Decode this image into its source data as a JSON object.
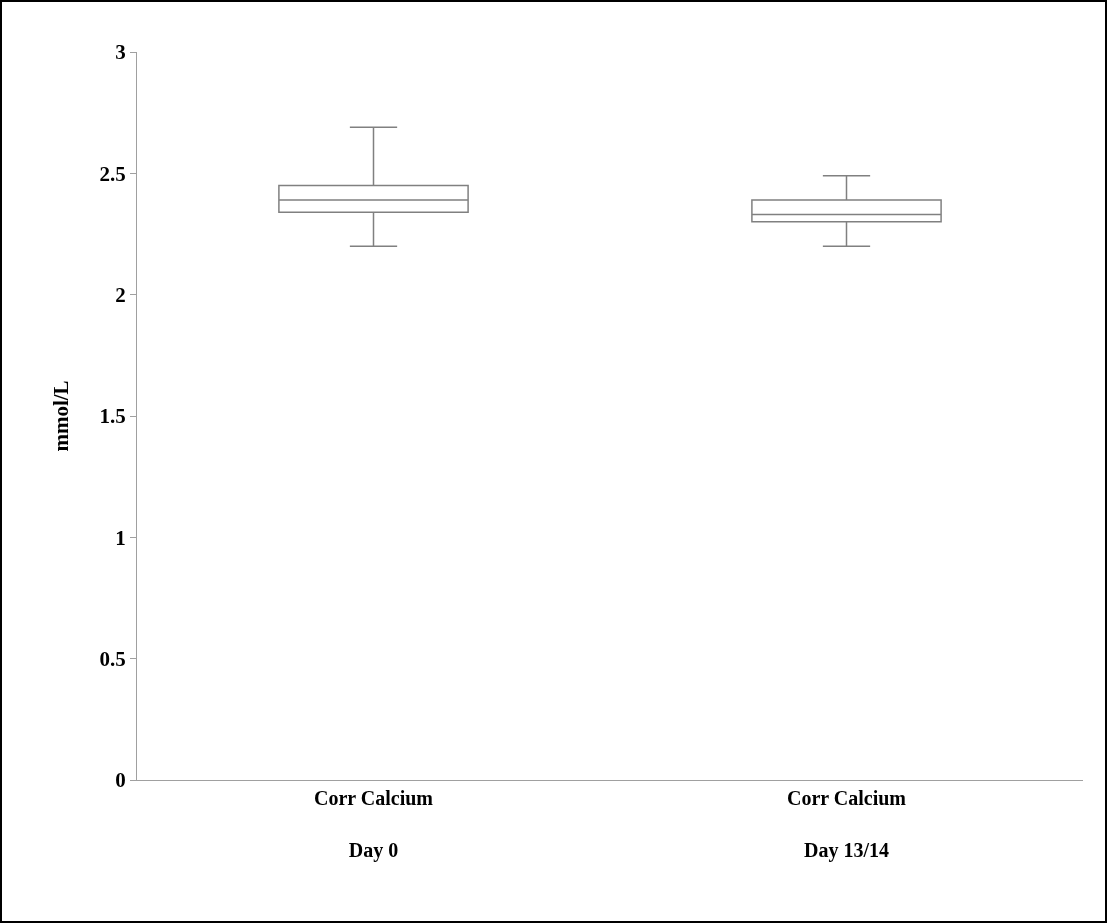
{
  "chart_data": {
    "type": "box",
    "ylabel": "mmol/L",
    "categories": [
      "Corr Calcium\nDay 0",
      "Corr Calcium\nDay 13/14"
    ],
    "boxes": [
      {
        "low": 2.2,
        "q1": 2.34,
        "median": 2.39,
        "q3": 2.45,
        "high": 2.69
      },
      {
        "low": 2.2,
        "q1": 2.3,
        "median": 2.33,
        "q3": 2.39,
        "high": 2.49
      }
    ],
    "color": "#808080",
    "ylim": [
      0,
      3
    ],
    "yticks": [
      0,
      0.5,
      1,
      1.5,
      2,
      2.5,
      3
    ],
    "grid": false,
    "legend": false
  }
}
